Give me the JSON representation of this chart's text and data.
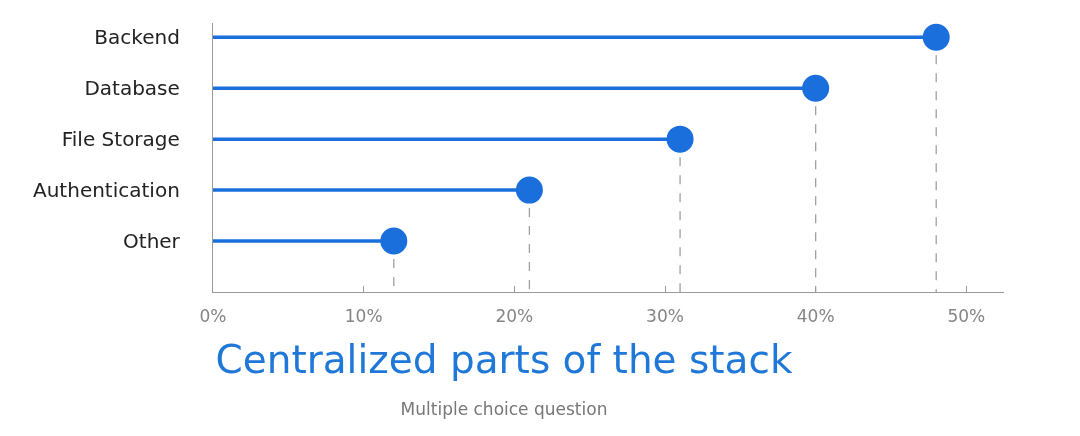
{
  "chart_data": {
    "type": "lollipop",
    "title": "Centralized parts of the stack",
    "subtitle": "Multiple choice question",
    "orientation": "horizontal",
    "categories": [
      "Backend",
      "Database",
      "File Storage",
      "Authentication",
      "Other"
    ],
    "values": [
      48,
      40,
      31,
      21,
      12
    ],
    "color": "#1a6fdc",
    "marker": "circle",
    "xlim": [
      0,
      52.5
    ],
    "xticks": [
      {
        "value": 0,
        "label": "0%"
      },
      {
        "value": 10,
        "label": "10%"
      },
      {
        "value": 20,
        "label": "20%"
      },
      {
        "value": 30,
        "label": "30%"
      },
      {
        "value": 40,
        "label": "40%"
      },
      {
        "value": 50,
        "label": "50%"
      }
    ],
    "ref_lines": [
      {
        "axis": "x",
        "value": 48,
        "color": "#a0a0a0",
        "line_style": "dashed"
      },
      {
        "axis": "x",
        "value": 40,
        "color": "#a0a0a0",
        "line_style": "dashed"
      },
      {
        "axis": "x",
        "value": 31,
        "color": "#a0a0a0",
        "line_style": "dashed"
      },
      {
        "axis": "x",
        "value": 21,
        "color": "#a0a0a0",
        "line_style": "dashed"
      },
      {
        "axis": "x",
        "value": 12,
        "color": "#a0a0a0",
        "line_style": "dashed"
      }
    ],
    "grid": false
  }
}
